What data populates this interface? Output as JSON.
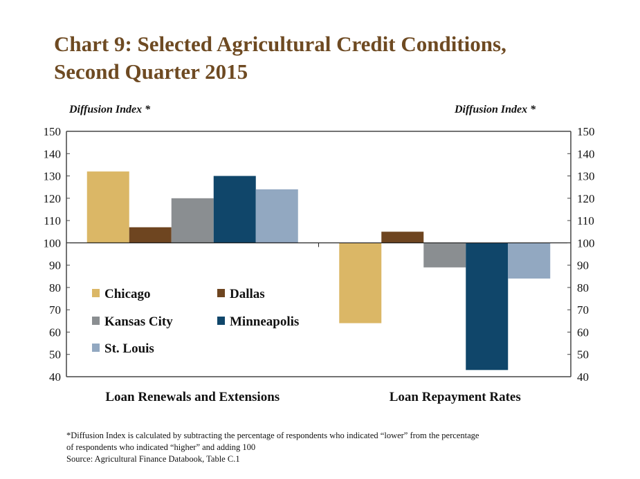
{
  "title_line1": "Chart 9: Selected Agricultural Credit Conditions,",
  "title_line2": "Second Quarter 2015",
  "footnote_line1": "*Diffusion Index is calculated by subtracting the percentage of respondents who indicated “lower” from the percentage",
  "footnote_line2": "of respondents who indicated “higher” and adding 100",
  "source": "Source: Agricultural Finance Databook, Table C.1",
  "chart_data": {
    "type": "bar",
    "title": "Chart 9: Selected Agricultural Credit Conditions, Second Quarter 2015",
    "ylabel": "Diffusion Index *",
    "ylabel_right": "Diffusion Index *",
    "ylim": [
      40,
      150
    ],
    "yticks": [
      40,
      50,
      60,
      70,
      80,
      90,
      100,
      110,
      120,
      130,
      140,
      150
    ],
    "baseline": 100,
    "categories": [
      "Loan Renewals and Extensions",
      "Loan Repayment Rates"
    ],
    "series": [
      {
        "name": "Chicago",
        "color": "#dbb766",
        "values": [
          132,
          64
        ]
      },
      {
        "name": "Dallas",
        "color": "#6e4520",
        "values": [
          107,
          105
        ]
      },
      {
        "name": "Kansas City",
        "color": "#8a8e91",
        "values": [
          120,
          89
        ]
      },
      {
        "name": "Minneapolis",
        "color": "#10466a",
        "values": [
          130,
          43
        ]
      },
      {
        "name": "St. Louis",
        "color": "#92a8c1",
        "values": [
          124,
          84
        ]
      }
    ],
    "legend_position": "bottom-left inside plot",
    "grid": false
  }
}
